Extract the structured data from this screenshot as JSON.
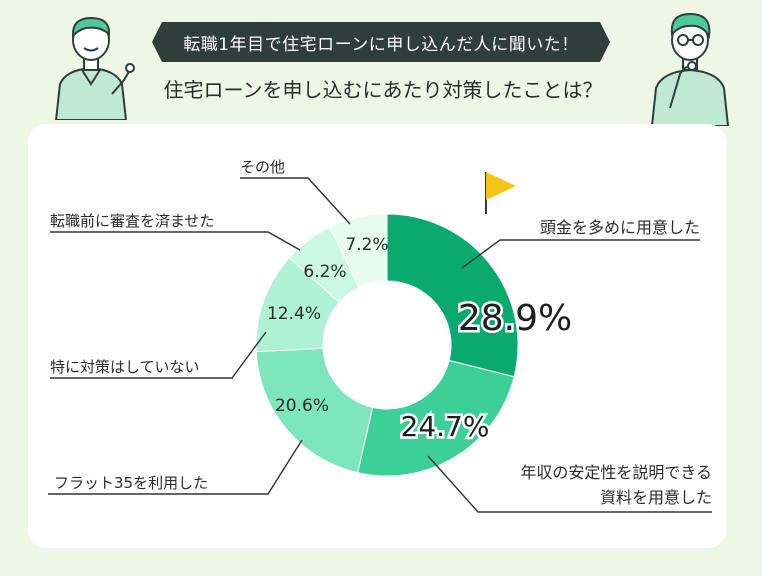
{
  "header": {
    "banner": "転職1年目で住宅ローンに申し込んだ人に聞いた！",
    "question": "住宅ローンを申し込むにあたり対策したことは？"
  },
  "colors": {
    "background": "#eef7e6",
    "banner_bg": "#2f3e3a",
    "card": "#ffffff",
    "flag": "#f5c518",
    "leader": "#333333"
  },
  "chart_data": {
    "type": "pie",
    "donut": true,
    "unit": "%",
    "slices": [
      {
        "label": "頭金を多めに用意した",
        "value": 28.9,
        "value_text": "28.9%",
        "color": "#0aa96f"
      },
      {
        "label": "年収の安定性を説明できる資料を用意した",
        "label_lines": [
          "年収の安定性を説明できる",
          "資料を用意した"
        ],
        "value": 24.7,
        "value_text": "24.7%",
        "color": "#3ccf97"
      },
      {
        "label": "フラット35を利用した",
        "value": 20.6,
        "value_text": "20.6%",
        "color": "#7ee6bf"
      },
      {
        "label": "特に対策はしていない",
        "value": 12.4,
        "value_text": "12.4%",
        "color": "#aef1d6"
      },
      {
        "label": "転職前に審査を済ませた",
        "value": 6.2,
        "value_text": "6.2%",
        "color": "#cbf7e5"
      },
      {
        "label": "その他",
        "value": 7.2,
        "value_text": "7.2%",
        "color": "#e6fbf2"
      }
    ]
  }
}
